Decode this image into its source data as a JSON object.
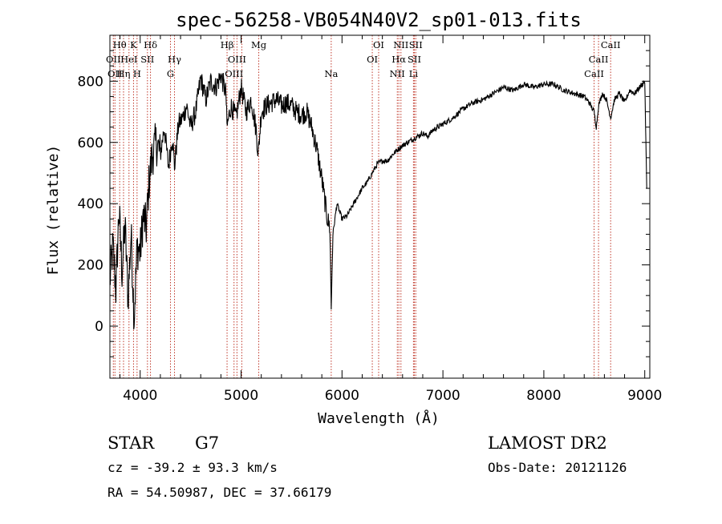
{
  "chart_data": {
    "type": "line",
    "title": "spec-56258-VB054N40V2_sp01-013.fits",
    "xlabel": "Wavelength (Å)",
    "ylabel": "Flux (relative)",
    "xlim": [
      3700,
      9050
    ],
    "ylim": [
      -170,
      950
    ],
    "xticks": [
      4000,
      5000,
      6000,
      7000,
      8000,
      9000
    ],
    "yticks": [
      0,
      200,
      400,
      600,
      800
    ],
    "grid": false,
    "series": [
      {
        "x": [
          3700,
          3730,
          3760,
          3790,
          3820,
          3850,
          3880,
          3910,
          3940,
          3970,
          4000,
          4030,
          4060,
          4090,
          4120,
          4160,
          4200,
          4240,
          4280,
          4320,
          4340,
          4380,
          4420,
          4460,
          4500,
          4550,
          4600,
          4650,
          4700,
          4750,
          4800,
          4850,
          4860,
          4900,
          4950,
          5000,
          5050,
          5100,
          5150,
          5170,
          5200,
          5250,
          5300,
          5350,
          5400,
          5450,
          5500,
          5550,
          5600,
          5650,
          5700,
          5750,
          5800,
          5850,
          5880,
          5893,
          5910,
          5950,
          6000,
          6050,
          6100,
          6150,
          6200,
          6250,
          6300,
          6350,
          6400,
          6450,
          6500,
          6563,
          6600,
          6650,
          6700,
          6750,
          6800,
          6850,
          6900,
          6950,
          7000,
          7100,
          7200,
          7300,
          7400,
          7500,
          7600,
          7700,
          7800,
          7900,
          8000,
          8100,
          8200,
          8300,
          8400,
          8450,
          8498,
          8520,
          8542,
          8580,
          8620,
          8662,
          8700,
          8750,
          8800,
          8850,
          8900,
          8950,
          9000,
          9020
        ],
        "y": [
          150,
          260,
          120,
          380,
          180,
          330,
          90,
          300,
          30,
          260,
          240,
          360,
          320,
          480,
          560,
          600,
          560,
          650,
          520,
          620,
          520,
          660,
          680,
          720,
          650,
          700,
          810,
          740,
          800,
          780,
          820,
          760,
          650,
          720,
          680,
          780,
          700,
          740,
          640,
          560,
          700,
          720,
          730,
          740,
          720,
          730,
          720,
          700,
          690,
          700,
          650,
          580,
          480,
          360,
          320,
          60,
          300,
          400,
          350,
          360,
          390,
          420,
          450,
          470,
          500,
          530,
          540,
          540,
          560,
          580,
          590,
          600,
          610,
          620,
          630,
          620,
          640,
          650,
          660,
          680,
          710,
          730,
          740,
          760,
          780,
          770,
          790,
          780,
          790,
          790,
          770,
          760,
          750,
          730,
          700,
          650,
          720,
          760,
          740,
          680,
          740,
          760,
          730,
          770,
          760,
          780,
          800,
          450
        ]
      }
    ],
    "lines": [
      {
        "wl": 3734,
        "label": "OII",
        "row": 1
      },
      {
        "wl": 3750,
        "label": "OII",
        "row": 2
      },
      {
        "wl": 3797,
        "label": "Hθ",
        "row": 0
      },
      {
        "wl": 3835,
        "label": "Hη",
        "row": 2
      },
      {
        "wl": 3889,
        "label": "HeI",
        "row": 1
      },
      {
        "wl": 3934,
        "label": "K",
        "row": 0
      },
      {
        "wl": 3969,
        "label": "H",
        "row": 2
      },
      {
        "wl": 4072,
        "label": "SII",
        "row": 1
      },
      {
        "wl": 4102,
        "label": "Hδ",
        "row": 0
      },
      {
        "wl": 4300,
        "label": "G",
        "row": 2
      },
      {
        "wl": 4340,
        "label": "Hγ",
        "row": 1
      },
      {
        "wl": 4861,
        "label": "Hβ",
        "row": 0
      },
      {
        "wl": 4930,
        "label": "OIII",
        "row": 2
      },
      {
        "wl": 4959,
        "label": "OIII",
        "row": 1
      },
      {
        "wl": 5007,
        "label": "",
        "row": 1
      },
      {
        "wl": 5175,
        "label": "Mg",
        "row": 0
      },
      {
        "wl": 5893,
        "label": "Na",
        "row": 2
      },
      {
        "wl": 6300,
        "label": "OI",
        "row": 1
      },
      {
        "wl": 6363,
        "label": "OI",
        "row": 0
      },
      {
        "wl": 6548,
        "label": "NII",
        "row": 2
      },
      {
        "wl": 6563,
        "label": "Hα",
        "row": 1
      },
      {
        "wl": 6584,
        "label": "NII",
        "row": 0
      },
      {
        "wl": 6708,
        "label": "Li",
        "row": 2
      },
      {
        "wl": 6717,
        "label": "SII",
        "row": 1
      },
      {
        "wl": 6731,
        "label": "SII",
        "row": 0
      },
      {
        "wl": 8498,
        "label": "CaII",
        "row": 2
      },
      {
        "wl": 8542,
        "label": "CaII",
        "row": 1
      },
      {
        "wl": 8662,
        "label": "CaII",
        "row": 0
      }
    ]
  },
  "info": {
    "class": "STAR",
    "subclass": "G7",
    "survey": "LAMOST DR2",
    "cz": "cz = -39.2 ± 93.3 km/s",
    "obs_date": "Obs-Date: 20121126",
    "coords": "RA =  54.50987, DEC =  37.66179"
  },
  "colors": {
    "line_marker": "#c0392b",
    "spectrum": "#000000"
  }
}
